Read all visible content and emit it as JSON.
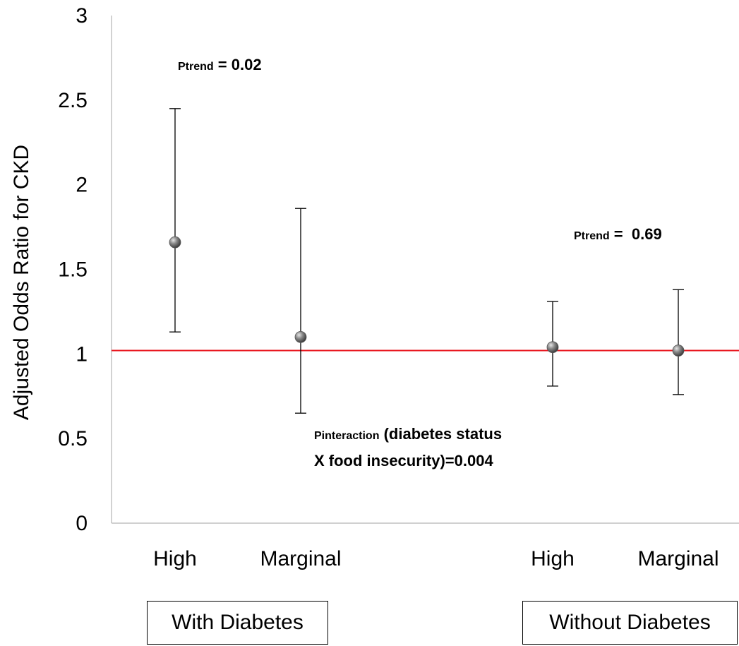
{
  "chart_data": {
    "type": "scatter",
    "ylabel": "Adjusted Odds Ratio for CKD",
    "ylim": [
      0,
      3
    ],
    "yticks": [
      "0",
      "0.5",
      "1",
      "1.5",
      "2",
      "2.5",
      "3"
    ],
    "categories": [
      "High",
      "Marginal",
      "High",
      "Marginal"
    ],
    "groups": [
      "With Diabetes",
      "Without Diabetes"
    ],
    "points": [
      {
        "category": "High",
        "group": "With Diabetes",
        "value": 1.66,
        "lower": 1.13,
        "upper": 2.45
      },
      {
        "category": "Marginal",
        "group": "With Diabetes",
        "value": 1.1,
        "lower": 0.65,
        "upper": 1.86
      },
      {
        "category": "High",
        "group": "Without Diabetes",
        "value": 1.04,
        "lower": 0.81,
        "upper": 1.31
      },
      {
        "category": "Marginal",
        "group": "Without Diabetes",
        "value": 1.02,
        "lower": 0.76,
        "upper": 1.38
      }
    ],
    "reference_line": {
      "value": 1.02,
      "color": "#e8131b"
    },
    "marker_color": "#7a7a7a",
    "grid": false,
    "annotations": {
      "ptrend_with": {
        "prefix": "Ptrend",
        "text": " = 0.02"
      },
      "ptrend_without": {
        "prefix": "Ptrend",
        "text": " =  0.69"
      },
      "pinteraction": {
        "prefix": "Pinteraction",
        "line1": " (diabetes status",
        "line2": "X food insecurity)=0.004"
      }
    }
  }
}
